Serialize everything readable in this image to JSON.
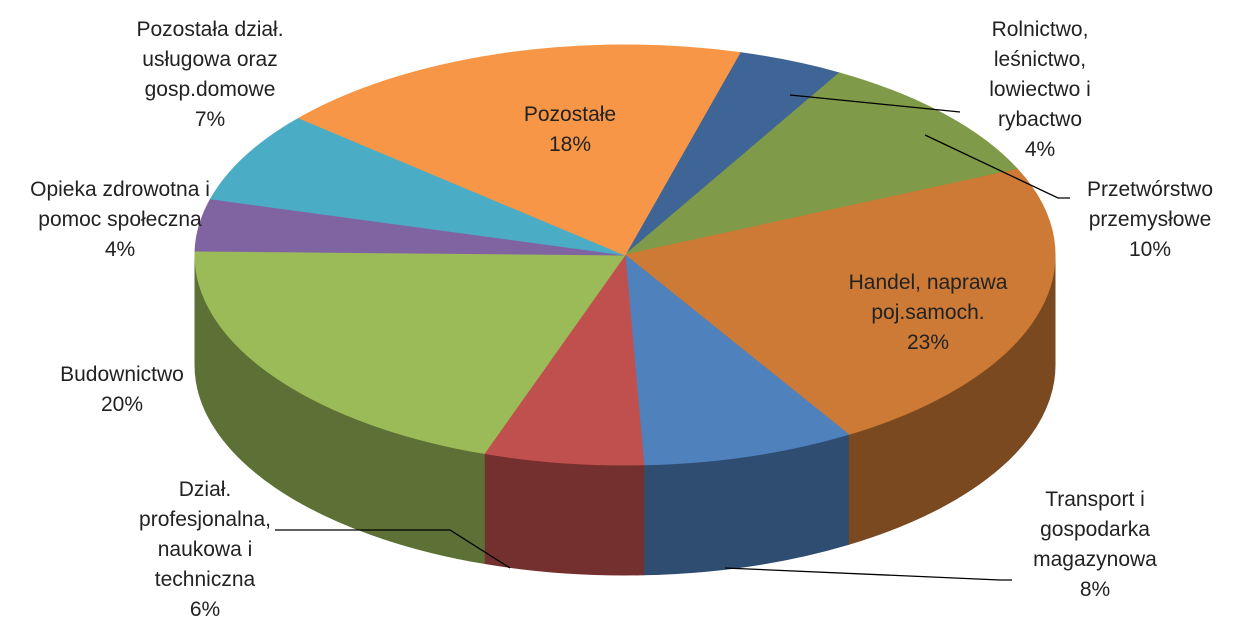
{
  "chart_data": {
    "type": "pie3d",
    "categories": [
      "Rolnictwo, leśnictwo, lowiectwo i rybactwo",
      "Przetwórstwo przemysłowe",
      "Handel, naprawa poj.samoch.",
      "Transport i gospodarka magazynowa",
      "Dział. profesjonalna, naukowa i techniczna",
      "Budownictwo",
      "Opieka zdrowotna i pomoc społeczna",
      "Pozostała dział. usługowa oraz gosp.domowe",
      "Pozostałe"
    ],
    "values": [
      4,
      10,
      23,
      8,
      6,
      20,
      4,
      7,
      18
    ],
    "value_labels": [
      "4%",
      "10%",
      "23%",
      "8%",
      "6%",
      "20%",
      "4%",
      "7%",
      "18%"
    ],
    "colors": [
      "#3f6496",
      "#7f9a48",
      "#cc7a35",
      "#4f81bd",
      "#c0504d",
      "#9bbb59",
      "#8064a2",
      "#4bacc6",
      "#f79646"
    ]
  }
}
